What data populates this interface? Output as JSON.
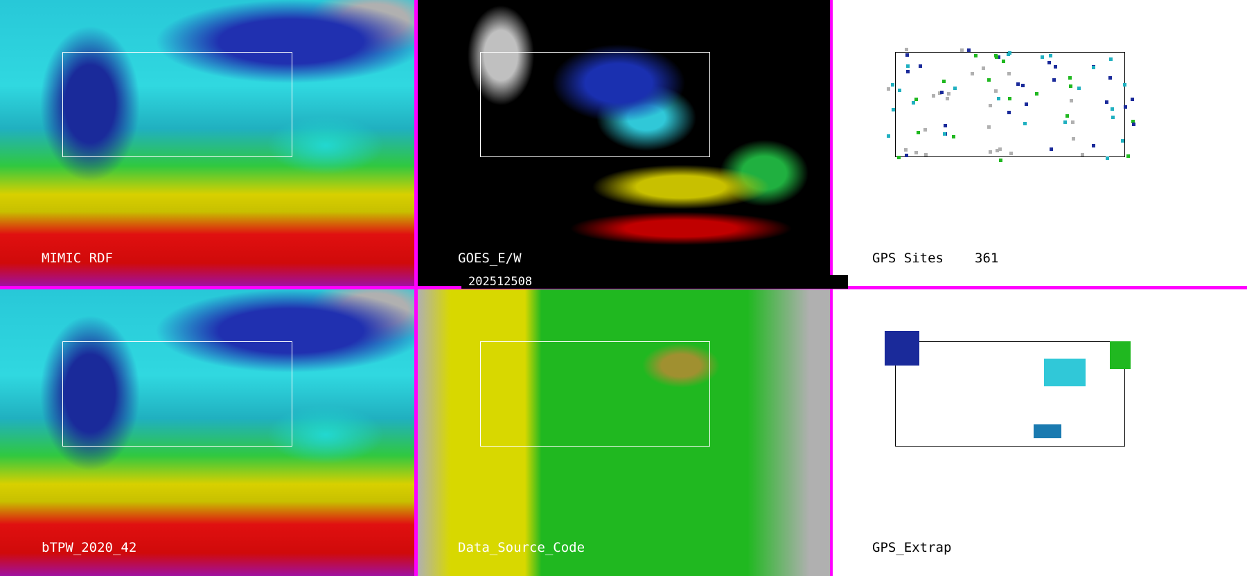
{
  "panels": [
    {
      "label": "MIMIC RDF",
      "style": "tpw"
    },
    {
      "label": "GOES_E/W",
      "style": "goes"
    },
    {
      "label": "GPS Sites",
      "count": "361",
      "style": "gps"
    },
    {
      "label": "bTPW_2020_42",
      "style": "tpw"
    },
    {
      "label": "Data_Source_Code",
      "style": "dsc"
    },
    {
      "label": "GPS_Extrap",
      "style": "gps"
    }
  ],
  "timestamp": "202512508",
  "colors": {
    "border": "#ff00ff",
    "dry": "#1a2a9a",
    "moist": "#30d8e0",
    "humid": "#d8d000",
    "very_humid": "#e01010"
  }
}
